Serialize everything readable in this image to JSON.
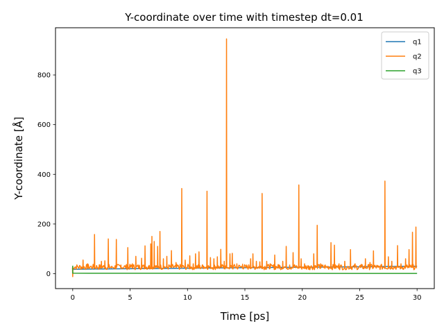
{
  "chart_data": {
    "type": "line",
    "title": "Y-coordinate over time with timestep dt=0.01",
    "xlabel": "Time [ps]",
    "ylabel": "Y-coordinate [Å]",
    "xlim": [
      -1.5,
      31.5
    ],
    "ylim": [
      -60,
      990
    ],
    "xticks": [
      0,
      5,
      10,
      15,
      20,
      25,
      30
    ],
    "yticks": [
      0,
      200,
      400,
      600,
      800
    ],
    "grid": false,
    "legend_position": "top-right",
    "series": [
      {
        "name": "q1",
        "color": "#1f77b4",
        "x": [
          0,
          30
        ],
        "y": [
          18,
          30
        ]
      },
      {
        "name": "q2",
        "color": "#ff7f0e",
        "baseline": 20,
        "spikes": [
          [
            0.0,
            -12
          ],
          [
            0.9,
            55
          ],
          [
            1.3,
            40
          ],
          [
            1.9,
            158
          ],
          [
            2.5,
            50
          ],
          [
            2.8,
            52
          ],
          [
            3.1,
            140
          ],
          [
            3.4,
            30
          ],
          [
            3.8,
            138
          ],
          [
            4.2,
            35
          ],
          [
            4.8,
            105
          ],
          [
            5.2,
            40
          ],
          [
            5.5,
            70
          ],
          [
            6.0,
            62
          ],
          [
            6.3,
            112
          ],
          [
            6.6,
            30
          ],
          [
            6.8,
            120
          ],
          [
            6.9,
            150
          ],
          [
            7.1,
            130
          ],
          [
            7.4,
            110
          ],
          [
            7.6,
            170
          ],
          [
            7.9,
            60
          ],
          [
            8.2,
            70
          ],
          [
            8.6,
            93
          ],
          [
            9.0,
            45
          ],
          [
            9.5,
            343
          ],
          [
            9.8,
            55
          ],
          [
            10.2,
            72
          ],
          [
            10.5,
            40
          ],
          [
            10.7,
            80
          ],
          [
            11.0,
            88
          ],
          [
            11.4,
            30
          ],
          [
            11.7,
            332
          ],
          [
            12.0,
            65
          ],
          [
            12.3,
            60
          ],
          [
            12.6,
            68
          ],
          [
            12.9,
            98
          ],
          [
            13.2,
            50
          ],
          [
            13.4,
            945
          ],
          [
            13.7,
            80
          ],
          [
            13.9,
            82
          ],
          [
            14.3,
            40
          ],
          [
            14.8,
            38
          ],
          [
            15.1,
            30
          ],
          [
            15.5,
            60
          ],
          [
            15.7,
            80
          ],
          [
            16.0,
            50
          ],
          [
            16.3,
            48
          ],
          [
            16.5,
            323
          ],
          [
            16.9,
            50
          ],
          [
            17.2,
            40
          ],
          [
            17.6,
            75
          ],
          [
            18.0,
            35
          ],
          [
            18.3,
            50
          ],
          [
            18.6,
            110
          ],
          [
            18.9,
            35
          ],
          [
            19.2,
            85
          ],
          [
            19.7,
            357
          ],
          [
            19.9,
            60
          ],
          [
            20.2,
            40
          ],
          [
            20.6,
            30
          ],
          [
            21.0,
            80
          ],
          [
            21.3,
            195
          ],
          [
            21.6,
            40
          ],
          [
            22.0,
            35
          ],
          [
            22.5,
            125
          ],
          [
            22.8,
            115
          ],
          [
            23.2,
            40
          ],
          [
            23.7,
            50
          ],
          [
            24.2,
            97
          ],
          [
            24.6,
            40
          ],
          [
            25.1,
            35
          ],
          [
            25.5,
            60
          ],
          [
            25.9,
            45
          ],
          [
            26.2,
            92
          ],
          [
            26.6,
            30
          ],
          [
            27.2,
            373
          ],
          [
            27.5,
            68
          ],
          [
            27.8,
            50
          ],
          [
            28.3,
            113
          ],
          [
            28.6,
            40
          ],
          [
            29.0,
            60
          ],
          [
            29.3,
            97
          ],
          [
            29.6,
            167
          ],
          [
            29.9,
            188
          ]
        ]
      },
      {
        "name": "q3",
        "color": "#2ca02c",
        "x": [
          0,
          0,
          0.02,
          30
        ],
        "y": [
          32,
          2,
          2,
          1
        ]
      }
    ]
  }
}
